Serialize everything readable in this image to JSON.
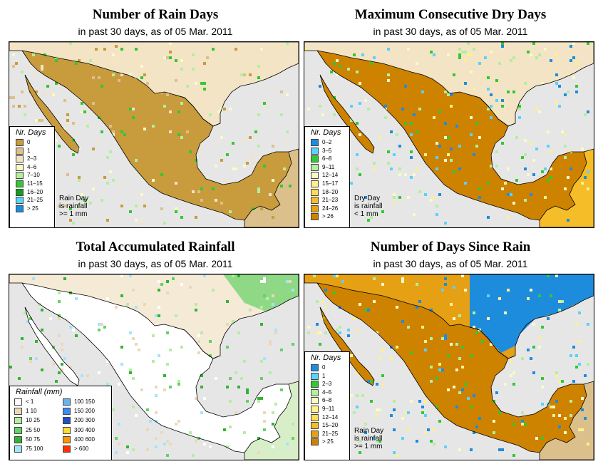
{
  "panels": [
    {
      "id": "rain-days",
      "title": "Number of Rain Days",
      "subtitle": "in past 30 days, as of  05 Mar. 2011",
      "legend_title": "Nr. Days",
      "note": [
        "Rain Day",
        "is rainfall",
        ">= 1 mm"
      ],
      "dominant": "#c89b3c",
      "legend": [
        {
          "label": "0",
          "color": "#c89b3c"
        },
        {
          "label": "1",
          "color": "#dcc08c"
        },
        {
          "label": "2–3",
          "color": "#f2e4c4"
        },
        {
          "label": "4–6",
          "color": "#fafac8"
        },
        {
          "label": "7–10",
          "color": "#b4eea0"
        },
        {
          "label": "11–15",
          "color": "#32c832"
        },
        {
          "label": "16–20",
          "color": "#14a014"
        },
        {
          "label": "21–25",
          "color": "#5ad2fa"
        },
        {
          "label": "> 25",
          "color": "#1e8cdc"
        }
      ]
    },
    {
      "id": "dry-days",
      "title": "Maximum Consecutive Dry Days",
      "subtitle": "in past 30 days, as of  05 Mar. 2011",
      "legend_title": "Nr. Days",
      "note": [
        "Dry Day",
        "is rainfall",
        "< 1 mm"
      ],
      "dominant": "#cd8200",
      "legend": [
        {
          "label": "0–2",
          "color": "#1e8cdc"
        },
        {
          "label": "3–5",
          "color": "#5ad2fa"
        },
        {
          "label": "6–8",
          "color": "#32c832"
        },
        {
          "label": "9–11",
          "color": "#b4eea0"
        },
        {
          "label": "12–14",
          "color": "#fafac8"
        },
        {
          "label": "15–17",
          "color": "#fff08c"
        },
        {
          "label": "18–20",
          "color": "#ffdc5a"
        },
        {
          "label": "21–23",
          "color": "#f5be28"
        },
        {
          "label": "24–26",
          "color": "#e6a014"
        },
        {
          "label": "> 26",
          "color": "#cd8200"
        }
      ]
    },
    {
      "id": "accum-rain",
      "title": "Total Accumulated Rainfall",
      "subtitle": "in past 30 days, as of  05 Mar. 2011",
      "legend_title": "Rainfall (mm)",
      "dominant": "#ffffff",
      "legend_left": [
        {
          "label": "< 1",
          "color": "#ffffff"
        },
        {
          "label": "1    10",
          "color": "#ecd8b8"
        },
        {
          "label": "10    25",
          "color": "#b4eea0"
        },
        {
          "label": "25    50",
          "color": "#64d264"
        },
        {
          "label": "50    75",
          "color": "#32b432"
        },
        {
          "label": "75   100",
          "color": "#a0e6fa"
        }
      ],
      "legend_right": [
        {
          "label": "100  150",
          "color": "#64b4f0"
        },
        {
          "label": "150  200",
          "color": "#3c8cf0"
        },
        {
          "label": "200  300",
          "color": "#1e50c8"
        },
        {
          "label": "300  400",
          "color": "#ffdc3c"
        },
        {
          "label": "400  600",
          "color": "#ff9600"
        },
        {
          "label": "> 600",
          "color": "#ff3200"
        }
      ]
    },
    {
      "id": "days-since",
      "title": "Number of Days Since Rain",
      "subtitle": "in past 30 days, as of  05 Mar. 2011",
      "legend_title": "Nr. Days",
      "note": [
        "Rain Day",
        "is rainfall",
        ">= 1 mm"
      ],
      "dominant": "#cd8200",
      "legend": [
        {
          "label": "0",
          "color": "#1e8cdc"
        },
        {
          "label": "1",
          "color": "#5ad2fa"
        },
        {
          "label": "2–3",
          "color": "#32c832"
        },
        {
          "label": "4–5",
          "color": "#b4eea0"
        },
        {
          "label": "6–8",
          "color": "#fafac8"
        },
        {
          "label": "9–11",
          "color": "#fff08c"
        },
        {
          "label": "12–14",
          "color": "#ffdc5a"
        },
        {
          "label": "15–20",
          "color": "#f5be28"
        },
        {
          "label": "21–25",
          "color": "#e6a014"
        },
        {
          "label": "> 25",
          "color": "#cd8200"
        }
      ]
    }
  ],
  "colors": {
    "sea": "#e6e6e6",
    "border": "#000000"
  }
}
